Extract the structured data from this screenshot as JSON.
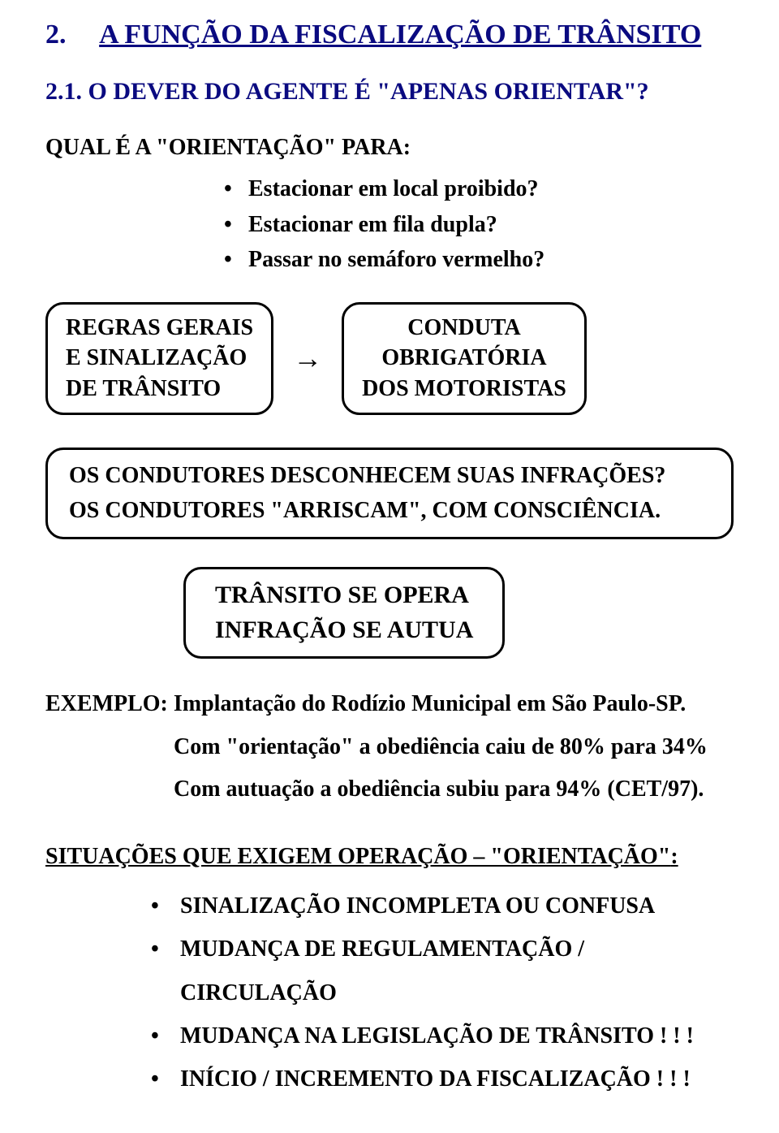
{
  "colors": {
    "heading": "#0a0a80",
    "text": "#000000",
    "box_border": "#000000",
    "background": "#ffffff"
  },
  "typography": {
    "family": "Times New Roman",
    "heading_size_pt": 26,
    "subheading_size_pt": 23,
    "body_size_pt": 21
  },
  "heading": {
    "number": "2.",
    "title": "A FUNÇÃO DA FISCALIZAÇÃO DE TRÂNSITO"
  },
  "subsection": "2.1.   O DEVER DO AGENTE É  \"APENAS ORIENTAR\"?",
  "question": {
    "lead": "QUAL É A \"ORIENTAÇÃO\" PARA:",
    "items": [
      "Estacionar em local proibido?",
      "Estacionar em fila dupla?",
      "Passar no semáforo vermelho?"
    ]
  },
  "box_left": "REGRAS GERAIS\nE  SINALIZAÇÃO\nDE TRÂNSITO",
  "arrow": "→",
  "box_right": "CONDUTA\nOBRIGATÓRIA\nDOS  MOTORISTAS",
  "wide_box": {
    "line1": "OS CONDUTORES DESCONHECEM SUAS INFRAÇÕES?",
    "line2": "OS CONDUTORES \"ARRISCAM\",  COM CONSCIÊNCIA."
  },
  "mid_box": {
    "line1": "TRÂNSITO SE OPERA",
    "line2": "INFRAÇÃO SE AUTUA"
  },
  "example": {
    "line1": "EXEMPLO: Implantação do Rodízio Municipal em São Paulo-SP.",
    "line2": "Com \"orientação\" a obediência caiu de 80% para 34%",
    "line3": "Com autuação a obediência subiu para 94% (CET/97)."
  },
  "situations": {
    "heading": "SITUAÇÕES QUE EXIGEM OPERAÇÃO – \"ORIENTAÇÃO\"",
    "tail": ":",
    "items": [
      "SINALIZAÇÃO INCOMPLETA OU CONFUSA",
      "MUDANÇA DE REGULAMENTAÇÃO / CIRCULAÇÃO",
      "MUDANÇA NA LEGISLAÇÃO DE TRÂNSITO ! ! !",
      "INÍCIO / INCREMENTO DA FISCALIZAÇÃO ! ! !"
    ]
  }
}
